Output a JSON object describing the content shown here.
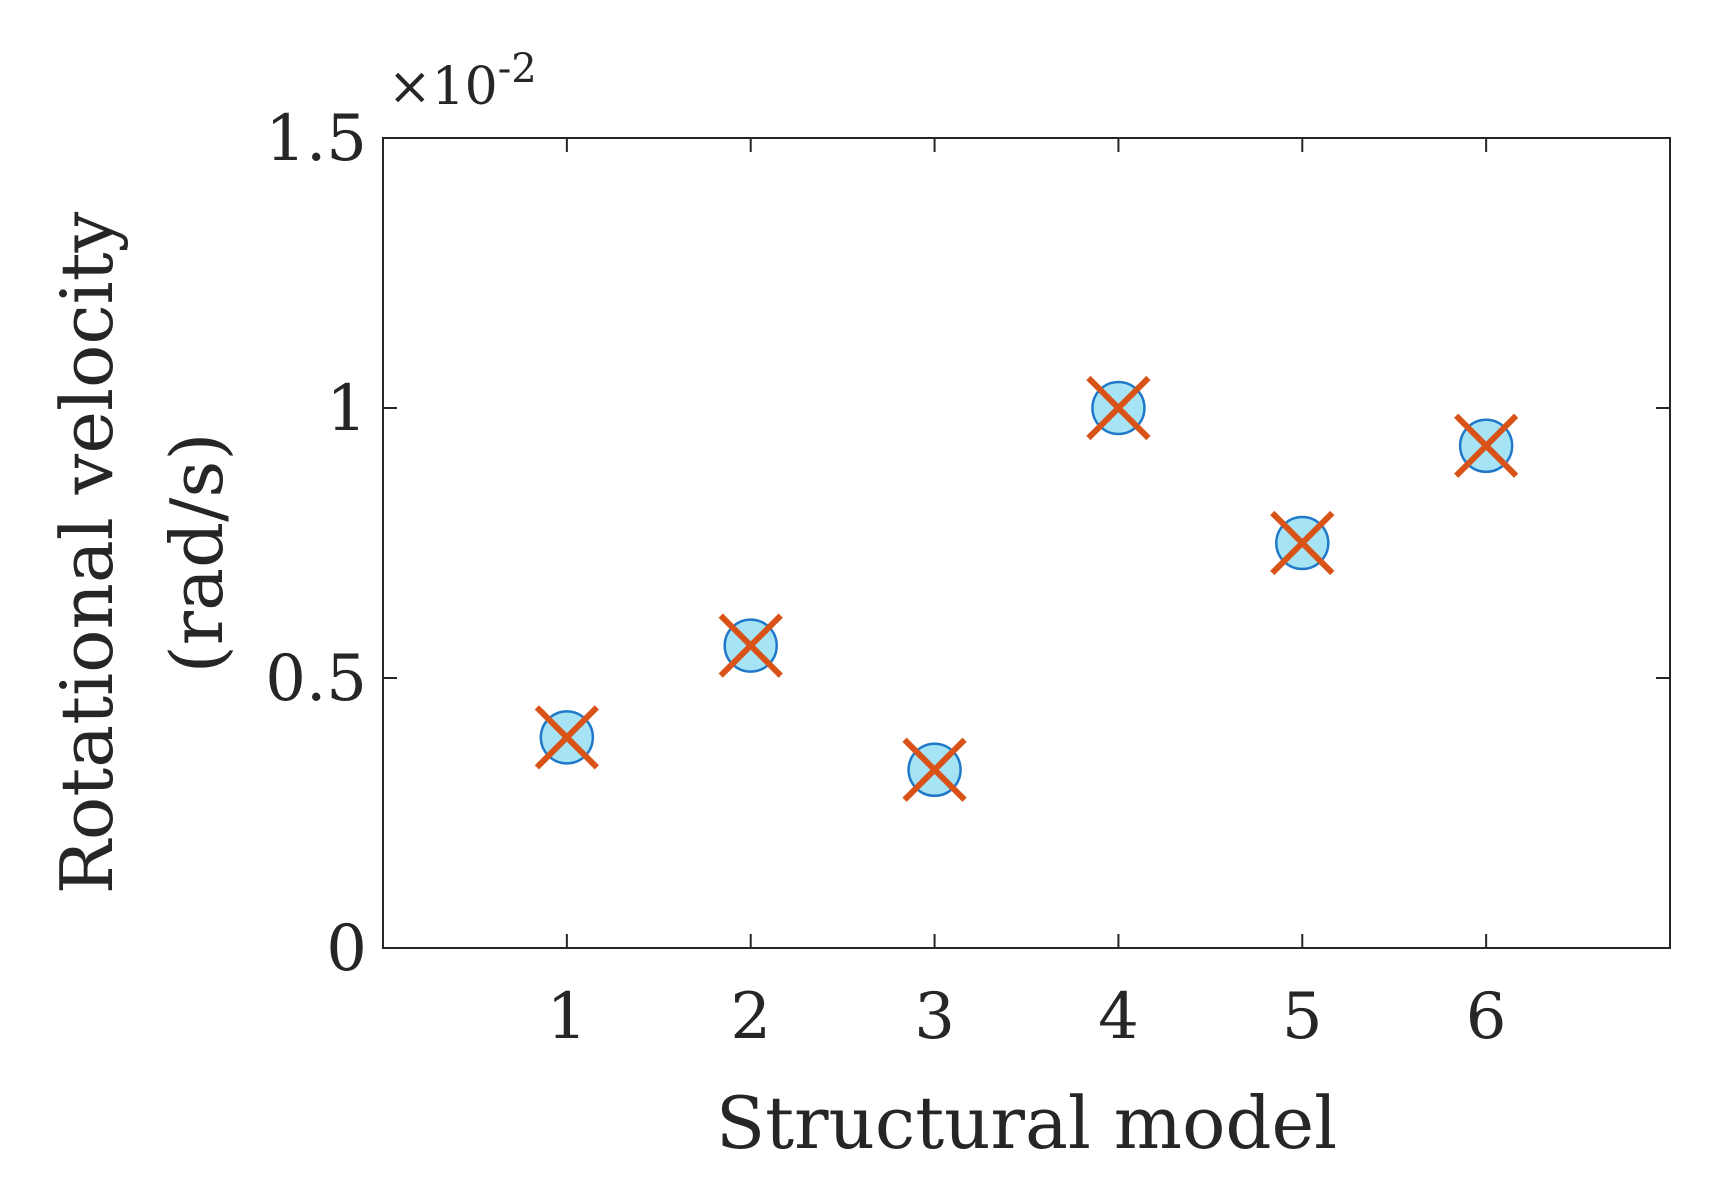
{
  "chart_data": {
    "type": "scatter",
    "xlabel": "Structural model",
    "ylabel": [
      "Rotational velocity",
      "(rad/s)"
    ],
    "y_exponent_label": {
      "base": "×10",
      "exponent": "-2"
    },
    "xlim": [
      0,
      7
    ],
    "ylim": [
      0,
      1.5
    ],
    "x_ticks": [
      1,
      2,
      3,
      4,
      5,
      6
    ],
    "x_tick_labels": [
      "1",
      "2",
      "3",
      "4",
      "5",
      "6"
    ],
    "y_ticks": [
      0,
      0.5,
      1,
      1.5
    ],
    "y_tick_labels": [
      "0",
      "0.5",
      "1",
      "1.5"
    ],
    "grid": false,
    "series": [
      {
        "marker": "circle",
        "color": "#1f78c8",
        "fill": "#a6e4f5",
        "x": [
          1,
          2,
          3,
          4,
          5,
          6
        ],
        "y": [
          0.39,
          0.56,
          0.33,
          1.0,
          0.75,
          0.93
        ]
      },
      {
        "marker": "x",
        "color": "#d95319",
        "x": [
          1,
          2,
          3,
          4,
          5,
          6
        ],
        "y": [
          0.39,
          0.56,
          0.33,
          1.0,
          0.75,
          0.93
        ]
      }
    ]
  }
}
